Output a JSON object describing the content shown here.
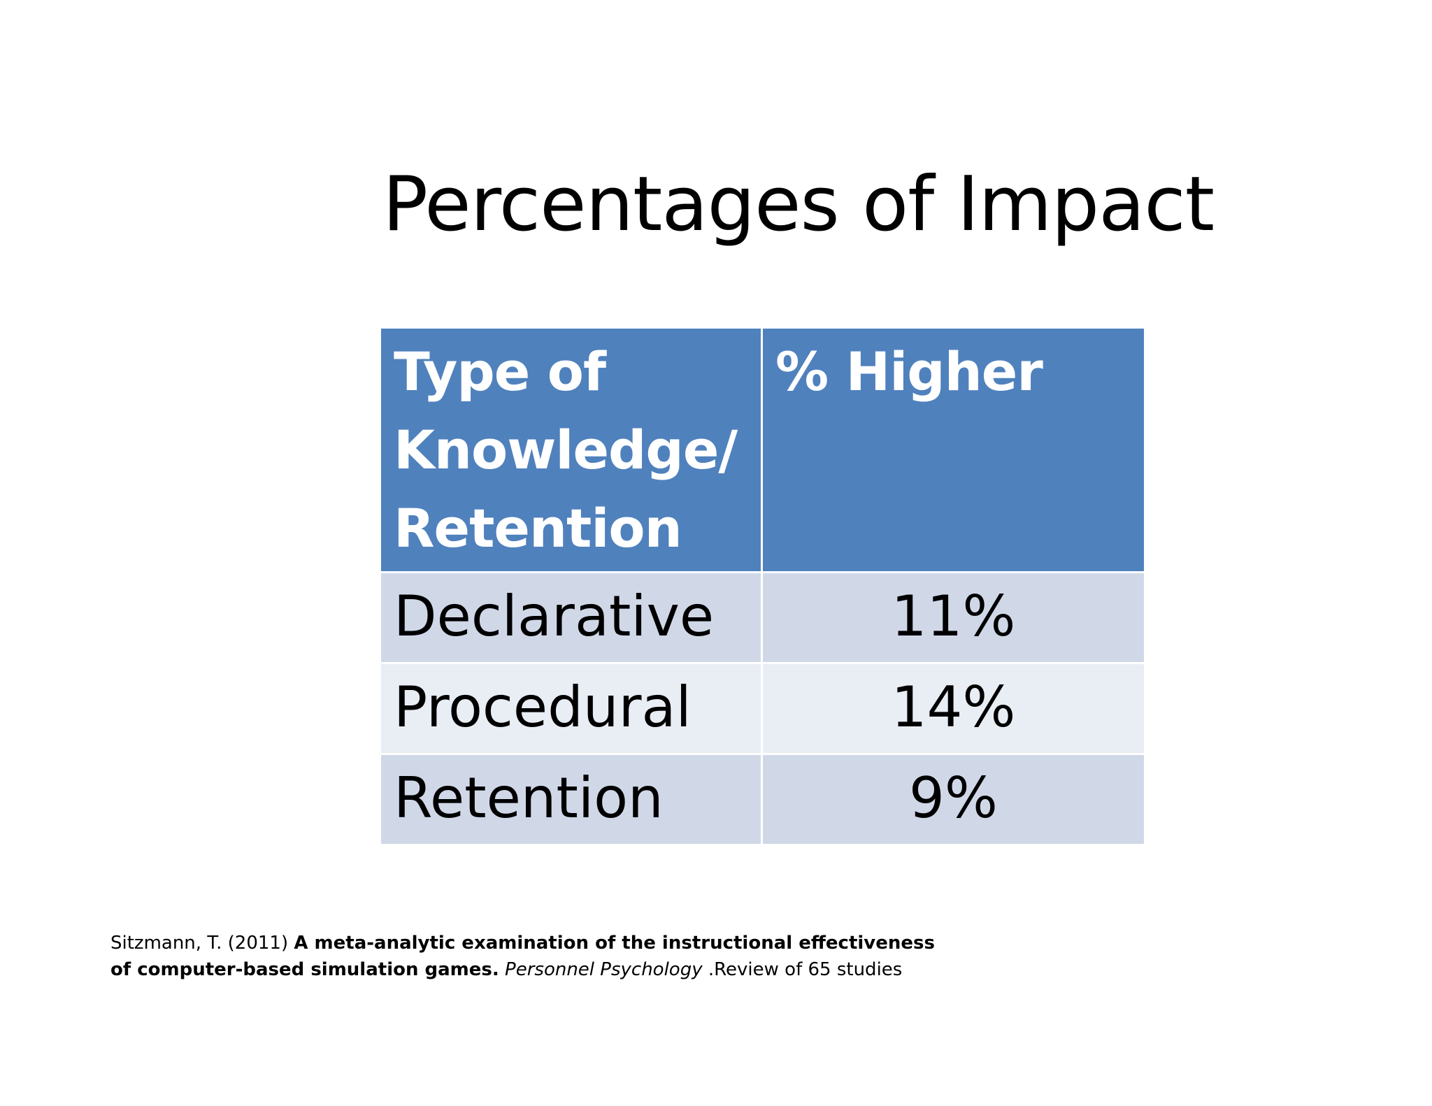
{
  "slide": {
    "title": "Percentages of Impact"
  },
  "table": {
    "header": {
      "type_line1": "Type of",
      "type_line2": "Knowledge/",
      "type_line3": "Retention",
      "value": "% Higher"
    },
    "rows": [
      {
        "type": "Declarative",
        "value": "11%"
      },
      {
        "type": "Procedural",
        "value": "14%"
      },
      {
        "type": "Retention",
        "value": "9%"
      }
    ]
  },
  "citation": {
    "author": "Sitzmann, T. (2011) ",
    "title_line1": "A meta-analytic examination of the instructional effectiveness",
    "title_line2": "of computer-based simulation games.",
    "journal": "Personnel Psychology",
    "note": " .Review of 65 studies"
  }
}
